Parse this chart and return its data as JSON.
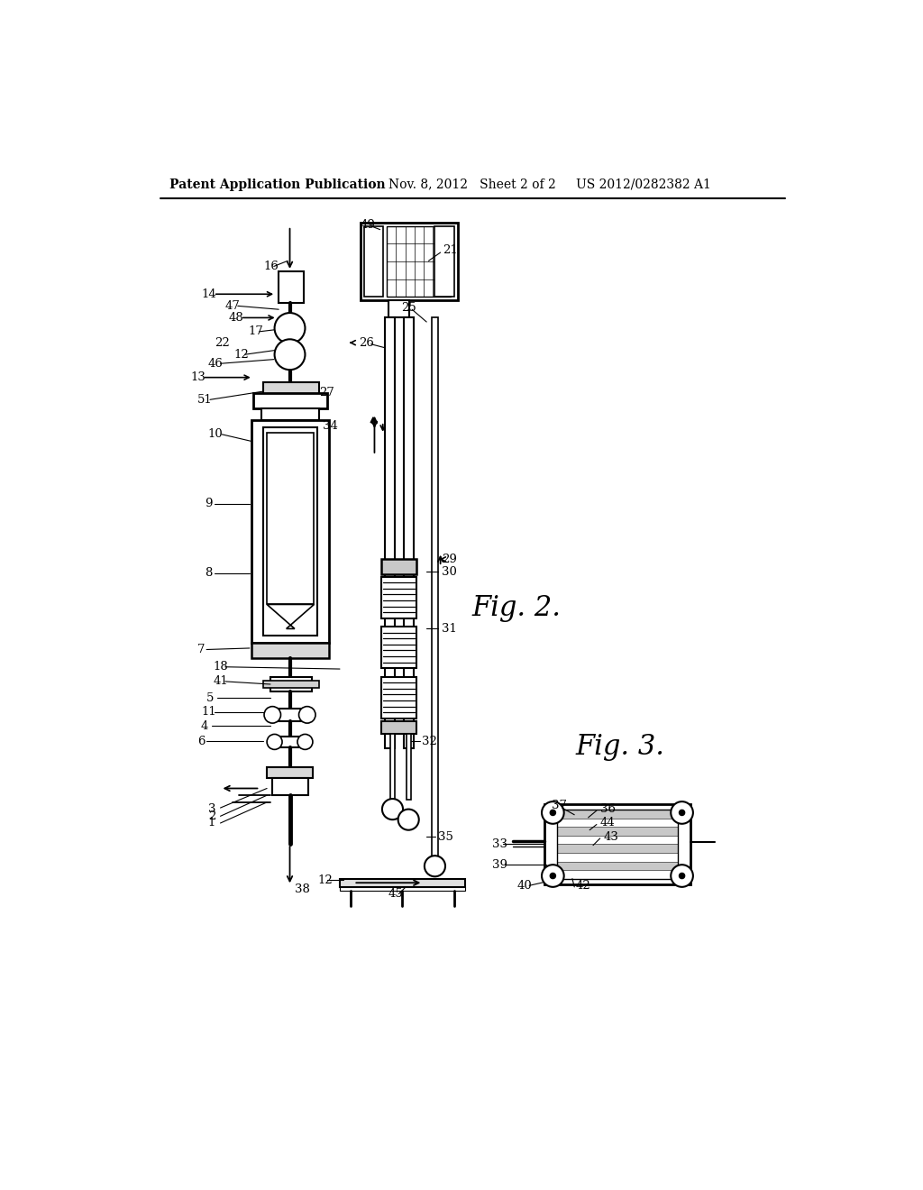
{
  "header_left": "Patent Application Publication",
  "header_mid": "Nov. 8, 2012   Sheet 2 of 2",
  "header_right": "US 2012/0282382 A1",
  "fig2_label": "Fig. 2.",
  "fig3_label": "Fig. 3.",
  "bg_color": "#ffffff"
}
